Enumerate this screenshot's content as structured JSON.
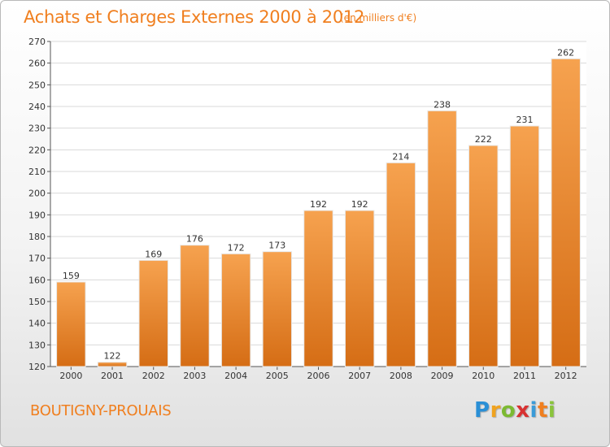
{
  "header": {
    "title": "Achats et Charges Externes 2000 à 2012",
    "subtitle": "(en milliers d'€)"
  },
  "footer": {
    "commune": "BOUTIGNY-PROUAIS",
    "logo_text": "Proxiti"
  },
  "colors": {
    "accent": "#f07f1f",
    "bar_top": "#f6a24f",
    "bar_bottom": "#d56d15",
    "grid": "#d9d9d9"
  },
  "chart_data": {
    "type": "bar",
    "title": "Achats et Charges Externes 2000 à 2012",
    "subtitle": "(en milliers d'€)",
    "categories": [
      "2000",
      "2001",
      "2002",
      "2003",
      "2004",
      "2005",
      "2006",
      "2007",
      "2008",
      "2009",
      "2010",
      "2011",
      "2012"
    ],
    "values": [
      159,
      122,
      169,
      176,
      172,
      173,
      192,
      192,
      214,
      238,
      222,
      231,
      262
    ],
    "ylim": [
      120,
      270
    ],
    "yticks": [
      120,
      130,
      140,
      150,
      160,
      170,
      180,
      190,
      200,
      210,
      220,
      230,
      240,
      250,
      260,
      270
    ],
    "grid": true,
    "data_labels": true
  }
}
